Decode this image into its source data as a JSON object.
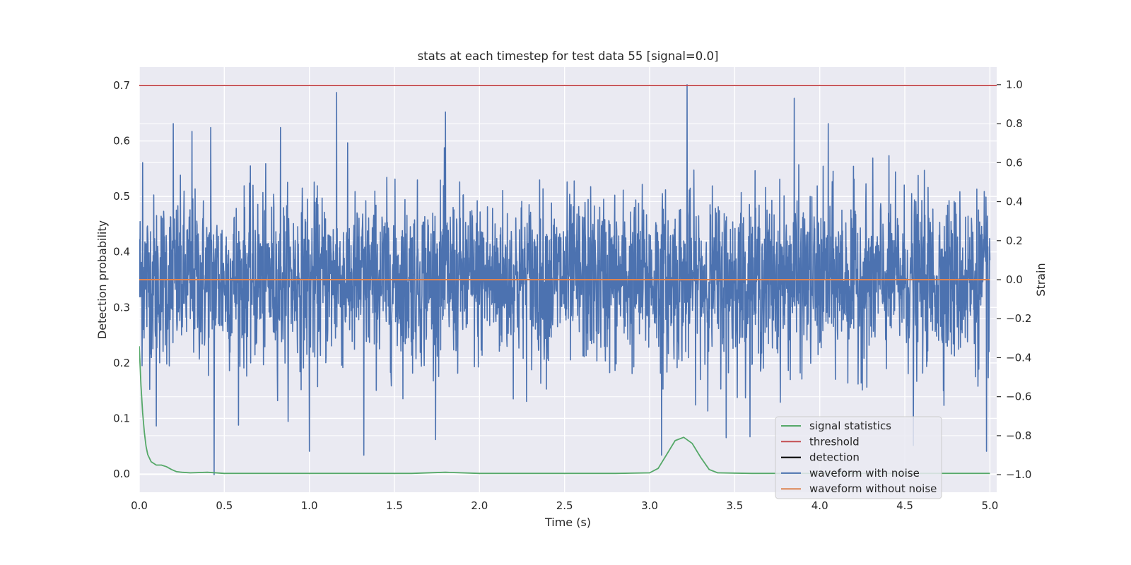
{
  "chart_data": {
    "type": "line",
    "title": "stats at each timestep for test data 55 [signal=0.0]",
    "xlabel": "Time (s)",
    "ylabel_left": "Detection probability",
    "ylabel_right": "Strain",
    "xlim": [
      0.0,
      5.04
    ],
    "ylim_left": [
      -0.033,
      0.733
    ],
    "ylim_right": [
      -1.09,
      1.09
    ],
    "x_ticks": [
      0.0,
      0.5,
      1.0,
      1.5,
      2.0,
      2.5,
      3.0,
      3.5,
      4.0,
      4.5,
      5.0
    ],
    "x_tick_labels": [
      "0.0",
      "0.5",
      "1.0",
      "1.5",
      "2.0",
      "2.5",
      "3.0",
      "3.5",
      "4.0",
      "4.5",
      "5.0"
    ],
    "y_left_ticks": [
      0.0,
      0.1,
      0.2,
      0.3,
      0.4,
      0.5,
      0.6,
      0.7
    ],
    "y_left_tick_labels": [
      "0.0",
      "0.1",
      "0.2",
      "0.3",
      "0.4",
      "0.5",
      "0.6",
      "0.7"
    ],
    "y_right_ticks": [
      -1.0,
      -0.8,
      -0.6,
      -0.4,
      -0.2,
      0.0,
      0.2,
      0.4,
      0.6,
      0.8,
      1.0
    ],
    "y_right_tick_labels": [
      "−1.0",
      "−0.8",
      "−0.6",
      "−0.4",
      "−0.2",
      "0.0",
      "0.2",
      "0.4",
      "0.6",
      "0.8",
      "1.0"
    ],
    "grid": true,
    "legend_placement": "lower-right",
    "colors": {
      "signal_statistics": "#55a868",
      "threshold": "#c44e52",
      "detection": "#000000",
      "waveform_with_noise": "#4c72b0",
      "waveform_without_noise": "#dd8452",
      "plot_bg": "#eaeaf2",
      "grid": "#ffffff"
    },
    "legend": [
      {
        "name": "signal statistics",
        "color": "#55a868"
      },
      {
        "name": "threshold",
        "color": "#c44e52"
      },
      {
        "name": "detection",
        "color": "#000000"
      },
      {
        "name": "waveform with noise",
        "color": "#4c72b0"
      },
      {
        "name": "waveform without noise",
        "color": "#dd8452"
      }
    ],
    "series": [
      {
        "name": "signal statistics",
        "axis": "left",
        "x": [
          0.0,
          0.01,
          0.02,
          0.03,
          0.04,
          0.05,
          0.07,
          0.1,
          0.13,
          0.16,
          0.19,
          0.22,
          0.25,
          0.3,
          0.4,
          0.5,
          0.8,
          1.2,
          1.6,
          1.8,
          2.0,
          2.4,
          2.8,
          3.0,
          3.05,
          3.1,
          3.15,
          3.2,
          3.25,
          3.3,
          3.35,
          3.4,
          3.6,
          4.0,
          4.5,
          5.0
        ],
        "y": [
          0.23,
          0.16,
          0.11,
          0.075,
          0.05,
          0.035,
          0.022,
          0.016,
          0.016,
          0.013,
          0.008,
          0.004,
          0.003,
          0.002,
          0.003,
          0.001,
          0.001,
          0.001,
          0.001,
          0.003,
          0.001,
          0.001,
          0.001,
          0.002,
          0.01,
          0.035,
          0.06,
          0.066,
          0.055,
          0.03,
          0.008,
          0.002,
          0.001,
          0.001,
          0.001,
          0.001
        ]
      },
      {
        "name": "threshold",
        "axis": "left",
        "x": [
          -0.1,
          5.1
        ],
        "y": [
          0.7,
          0.7
        ]
      },
      {
        "name": "waveform without noise",
        "axis": "right",
        "x": [
          0.0,
          5.0
        ],
        "y": [
          0.0,
          0.0
        ]
      },
      {
        "name": "waveform with noise",
        "axis": "right",
        "x_range": [
          0.0,
          5.0
        ],
        "typical_range": [
          -0.45,
          0.45
        ],
        "peaks": [
          {
            "x": 0.02,
            "y": 0.6
          },
          {
            "x": 0.2,
            "y": 0.8
          },
          {
            "x": 0.31,
            "y": 0.76
          },
          {
            "x": 0.42,
            "y": 0.78
          },
          {
            "x": 0.83,
            "y": 0.78
          },
          {
            "x": 1.16,
            "y": 0.96
          },
          {
            "x": 1.8,
            "y": 0.86
          },
          {
            "x": 3.22,
            "y": 1.0
          },
          {
            "x": 3.85,
            "y": 0.93
          },
          {
            "x": 4.05,
            "y": 0.8
          }
        ],
        "troughs": [
          {
            "x": 0.44,
            "y": -1.0
          },
          {
            "x": 0.1,
            "y": -0.75
          },
          {
            "x": 1.0,
            "y": -0.88
          },
          {
            "x": 1.32,
            "y": -0.9
          },
          {
            "x": 3.07,
            "y": -0.9
          },
          {
            "x": 3.45,
            "y": -0.81
          },
          {
            "x": 4.55,
            "y": -0.85
          },
          {
            "x": 4.98,
            "y": -0.88
          }
        ]
      }
    ]
  }
}
